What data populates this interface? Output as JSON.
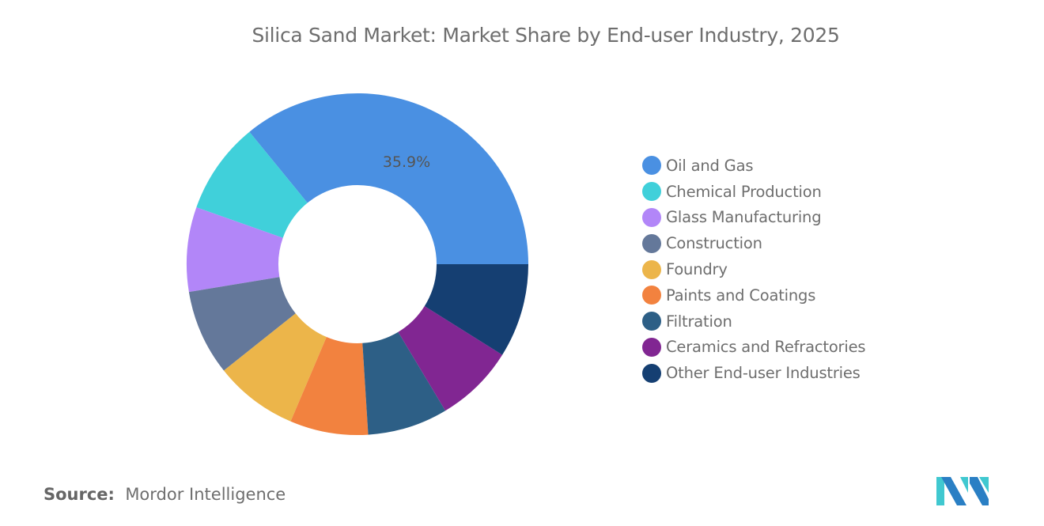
{
  "chart_data": {
    "type": "pie",
    "variant": "donut",
    "title": "Silica Sand Market: Market Share by End-user Industry, 2025",
    "unit": "%",
    "legend_position": "right",
    "categories": [
      "Oil and Gas",
      "Chemical Production",
      "Glass Manufacturing",
      "Construction",
      "Foundry",
      "Paints and Coatings",
      "Filtration",
      "Ceramics and Refractories",
      "Other End-user Industries"
    ],
    "values": [
      35.9,
      8.7,
      8.0,
      8.1,
      7.9,
      7.4,
      7.6,
      7.5,
      8.9
    ],
    "colors": [
      "#4a90e2",
      "#40d0da",
      "#b286f8",
      "#64789a",
      "#ecb54a",
      "#f2823f",
      "#2d5f86",
      "#812692",
      "#153f72"
    ],
    "data_labels": [
      {
        "category": "Oil and Gas",
        "text": "35.9%"
      }
    ]
  },
  "source": {
    "label": "Source:",
    "value": "Mordor Intelligence"
  },
  "logo": {
    "text": "MI",
    "colors": [
      "#2a7fc4",
      "#40c8d0"
    ]
  }
}
